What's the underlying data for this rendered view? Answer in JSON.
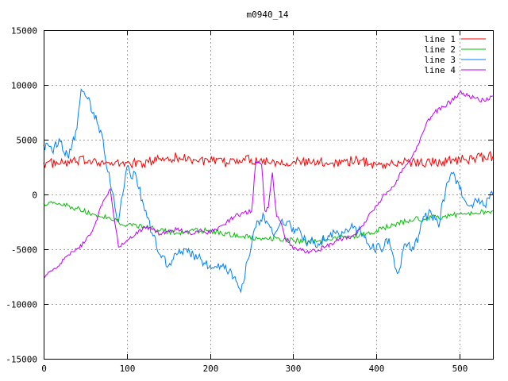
{
  "chart_data": {
    "type": "line",
    "title": "m0940_14",
    "xlabel": "",
    "ylabel": "",
    "xlim": [
      0,
      540
    ],
    "ylim": [
      -15000,
      15000
    ],
    "x_ticks": [
      0,
      100,
      200,
      300,
      400,
      500
    ],
    "y_ticks": [
      -15000,
      -10000,
      -5000,
      0,
      5000,
      10000,
      15000
    ],
    "grid": true,
    "legend_position": "top-right",
    "series": [
      {
        "name": "line 1",
        "color": "#ff0000",
        "x": [
          0,
          20,
          40,
          60,
          80,
          100,
          120,
          140,
          160,
          180,
          200,
          220,
          240,
          260,
          280,
          300,
          320,
          340,
          360,
          380,
          400,
          420,
          440,
          460,
          480,
          500,
          520,
          540
        ],
        "y": [
          2900,
          2800,
          3000,
          3200,
          2700,
          2900,
          2800,
          3300,
          3400,
          3200,
          3000,
          2900,
          3300,
          3100,
          3000,
          3000,
          2900,
          2900,
          3000,
          3100,
          2700,
          2800,
          3000,
          2900,
          3000,
          3200,
          3300,
          3500
        ]
      },
      {
        "name": "line 2",
        "color": "#00c000",
        "x": [
          0,
          20,
          40,
          60,
          80,
          100,
          120,
          140,
          160,
          180,
          200,
          220,
          240,
          260,
          280,
          300,
          320,
          340,
          360,
          380,
          400,
          420,
          440,
          460,
          480,
          500,
          520,
          540
        ],
        "y": [
          -800,
          -900,
          -1300,
          -1800,
          -2200,
          -2800,
          -2900,
          -3300,
          -3500,
          -3300,
          -3300,
          -3600,
          -3800,
          -4000,
          -4000,
          -4200,
          -4300,
          -4100,
          -3900,
          -3700,
          -3300,
          -2800,
          -2300,
          -2200,
          -2000,
          -1800,
          -1700,
          -1500
        ]
      },
      {
        "name": "line 3",
        "color": "#0080ff",
        "x": [
          0,
          10,
          20,
          30,
          40,
          45,
          50,
          60,
          70,
          80,
          90,
          95,
          100,
          105,
          110,
          120,
          130,
          140,
          150,
          160,
          170,
          180,
          190,
          200,
          210,
          220,
          230,
          237,
          245,
          255,
          265,
          275,
          285,
          300,
          315,
          330,
          345,
          360,
          375,
          390,
          405,
          415,
          425,
          435,
          445,
          455,
          465,
          475,
          480,
          490,
          500,
          510,
          520,
          530,
          540
        ],
        "y": [
          4500,
          4000,
          4800,
          3300,
          6000,
          9600,
          9000,
          7500,
          5500,
          1000,
          -2500,
          0,
          2500,
          1500,
          2000,
          -1000,
          -3500,
          -5500,
          -6500,
          -5500,
          -5000,
          -5500,
          -6000,
          -6500,
          -6300,
          -7000,
          -7500,
          -8900,
          -6000,
          -3000,
          -2000,
          -3500,
          -2500,
          -3000,
          -4200,
          -4500,
          -3500,
          -3500,
          -3000,
          -4500,
          -5000,
          -4000,
          -7200,
          -4500,
          -5000,
          -2500,
          -1500,
          -3000,
          -500,
          2000,
          500,
          -1000,
          -500,
          -1000,
          0
        ]
      },
      {
        "name": "line 4",
        "color": "#c000ff",
        "x": [
          0,
          10,
          20,
          30,
          40,
          50,
          60,
          70,
          80,
          90,
          100,
          110,
          120,
          130,
          140,
          150,
          160,
          170,
          180,
          190,
          200,
          210,
          220,
          230,
          240,
          250,
          255,
          258,
          262,
          266,
          270,
          275,
          280,
          285,
          290,
          295,
          300,
          310,
          320,
          330,
          340,
          350,
          360,
          370,
          380,
          390,
          400,
          410,
          420,
          430,
          440,
          450,
          460,
          470,
          480,
          490,
          500,
          510,
          520,
          530,
          540
        ],
        "y": [
          -7500,
          -7000,
          -6300,
          -5500,
          -5000,
          -4300,
          -3000,
          -1000,
          500,
          -4800,
          -4200,
          -3700,
          -3000,
          -3200,
          -3600,
          -3300,
          -3200,
          -3400,
          -3600,
          -3300,
          -3500,
          -3000,
          -2500,
          -2000,
          -1700,
          -1500,
          3000,
          3000,
          2700,
          -1500,
          -1200,
          2000,
          -2000,
          -2500,
          -4000,
          -4300,
          -5000,
          -5100,
          -5200,
          -5100,
          -4700,
          -4300,
          -4000,
          -3800,
          -3200,
          -2000,
          -1000,
          0,
          700,
          2000,
          3000,
          4500,
          6500,
          7500,
          8000,
          8500,
          9300,
          9000,
          8800,
          8500,
          9000
        ]
      }
    ]
  }
}
